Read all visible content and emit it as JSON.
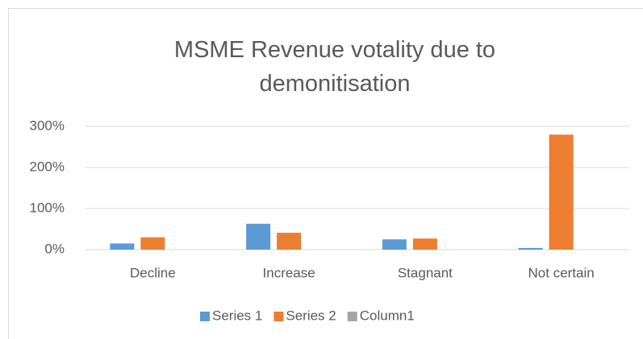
{
  "chart_data": {
    "type": "bar",
    "title": "MSME Revenue votality due to demonitisation",
    "categories": [
      "Decline",
      "Increase",
      "Stagnant",
      "Not certain"
    ],
    "series": [
      {
        "name": "Series 1",
        "color": "#5b9bd5",
        "values": [
          15,
          63,
          25,
          4
        ]
      },
      {
        "name": "Series 2",
        "color": "#ed7d31",
        "values": [
          30,
          41,
          27,
          280
        ]
      },
      {
        "name": "Column1",
        "color": "#a5a5a5",
        "values": [
          null,
          null,
          null,
          null
        ]
      }
    ],
    "ylim": [
      0,
      300
    ],
    "yticks": [
      {
        "value": 0,
        "label": "0%"
      },
      {
        "value": 100,
        "label": "100%"
      },
      {
        "value": 200,
        "label": "200%"
      },
      {
        "value": 300,
        "label": "300%"
      }
    ],
    "grid": true,
    "legend": "bottom"
  }
}
